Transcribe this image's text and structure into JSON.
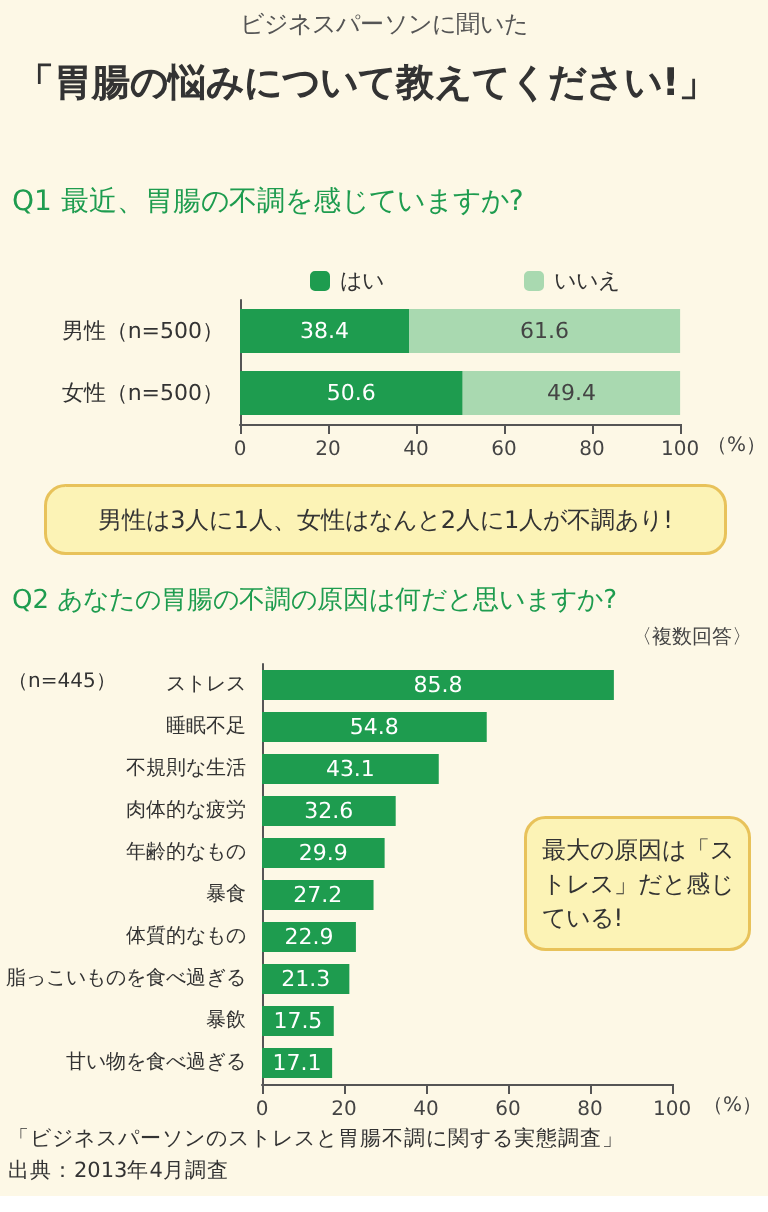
{
  "chart_data": [
    {
      "type": "other",
      "title": "「胃腸の悩みについて教えてください!」",
      "subtitle": "ビジネスパーソンに聞いた"
    },
    {
      "type": "bar",
      "title": "Q1 最近、胃腸の不調を感じていますか?",
      "orientation": "horizontal",
      "stacked": true,
      "categories": [
        "男性（n=500）",
        "女性（n=500）"
      ],
      "series": [
        {
          "name": "はい",
          "color": "#1e9c4f",
          "values": [
            38.4,
            50.6
          ]
        },
        {
          "name": "いいえ",
          "color": "#a9d9b0",
          "values": [
            61.6,
            49.4
          ]
        }
      ],
      "xlim": [
        0,
        100
      ],
      "xticks": [
        0,
        20,
        40,
        60,
        80,
        100
      ],
      "xlabel": "（%）",
      "data_labels": true,
      "legend": "top",
      "grid": false,
      "annotations": [
        "男性は3人に1人、女性はなんと2人に1人が不調あり!"
      ]
    },
    {
      "type": "bar",
      "title": "Q2 あなたの胃腸の不調の原因は何だと思いますか?",
      "subtitle": "〈複数回答〉",
      "orientation": "horizontal",
      "categories": [
        "ストレス",
        "睡眠不足",
        "不規則な生活",
        "肉体的な疲労",
        "年齢的なもの",
        "暴食",
        "体質的なもの",
        "脂っこいものを食べ過ぎる",
        "暴飲",
        "甘い物を食べ過ぎる"
      ],
      "values": [
        85.8,
        54.8,
        43.1,
        32.6,
        29.9,
        27.2,
        22.9,
        21.3,
        17.5,
        17.1
      ],
      "color": "#1e9c4f",
      "xlim": [
        0,
        100
      ],
      "xticks": [
        0,
        20,
        40,
        60,
        80,
        100
      ],
      "xlabel": "（%）",
      "data_labels": true,
      "grid": false,
      "annotations": [
        "（n=445）",
        "最大の原因は「ストレス」だと感じている!",
        "「ビジネスパーソンのストレスと胃腸不調に関する実態調査」",
        "出典：2013年4月調査"
      ]
    }
  ]
}
